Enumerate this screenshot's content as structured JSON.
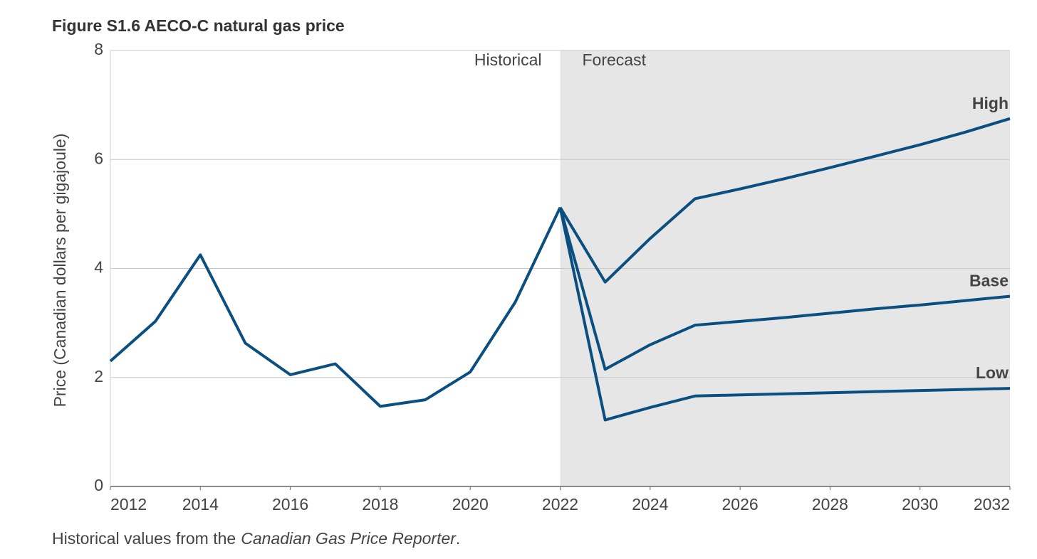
{
  "chart_data": {
    "type": "line",
    "title": "Figure S1.6  AECO-C natural gas price",
    "y_label": "Price (Canadian dollars per gigajoule)",
    "note": {
      "text": "Historical values from the",
      "source": "Canadian Gas Price Reporter",
      "end": "."
    },
    "forecast_label": "Forecast",
    "forecast_start": 2022,
    "x": [
      2012,
      2013,
      2014,
      2015,
      2016,
      2017,
      2018,
      2019,
      2020,
      2021,
      2022,
      2023,
      2024,
      2025,
      2026,
      2027,
      2028,
      2029,
      2030,
      2031,
      2032
    ],
    "series": [
      {
        "name": "Historical",
        "color": "#0b4f80",
        "values": [
          2.3,
          3.03,
          4.25,
          2.63,
          2.05,
          2.25,
          1.47,
          1.59,
          2.1,
          3.38,
          5.12,
          null,
          null,
          null,
          null,
          null,
          null,
          null,
          null,
          null,
          null
        ]
      },
      {
        "name": "High",
        "color": "#0b4f80",
        "values": [
          null,
          null,
          null,
          null,
          null,
          null,
          null,
          null,
          null,
          null,
          5.12,
          3.75,
          4.55,
          5.28,
          5.46,
          5.65,
          5.85,
          6.06,
          6.27,
          6.5,
          6.75
        ]
      },
      {
        "name": "Base",
        "color": "#0b4f80",
        "values": [
          null,
          null,
          null,
          null,
          null,
          null,
          null,
          null,
          null,
          null,
          5.12,
          2.15,
          2.6,
          2.96,
          3.03,
          3.1,
          3.18,
          3.26,
          3.33,
          3.41,
          3.49
        ]
      },
      {
        "name": "Low",
        "color": "#0b4f80",
        "values": [
          null,
          null,
          null,
          null,
          null,
          null,
          null,
          null,
          null,
          null,
          5.12,
          1.22,
          1.45,
          1.66,
          1.68,
          1.7,
          1.72,
          1.74,
          1.76,
          1.78,
          1.8
        ]
      }
    ],
    "xlim": [
      2012,
      2032
    ],
    "xticks": [
      2012,
      2014,
      2016,
      2018,
      2020,
      2022,
      2024,
      2026,
      2028,
      2030,
      2032
    ],
    "ylim": [
      0,
      8
    ],
    "yticks": [
      0,
      2,
      4,
      6,
      8
    ],
    "grid": true
  }
}
